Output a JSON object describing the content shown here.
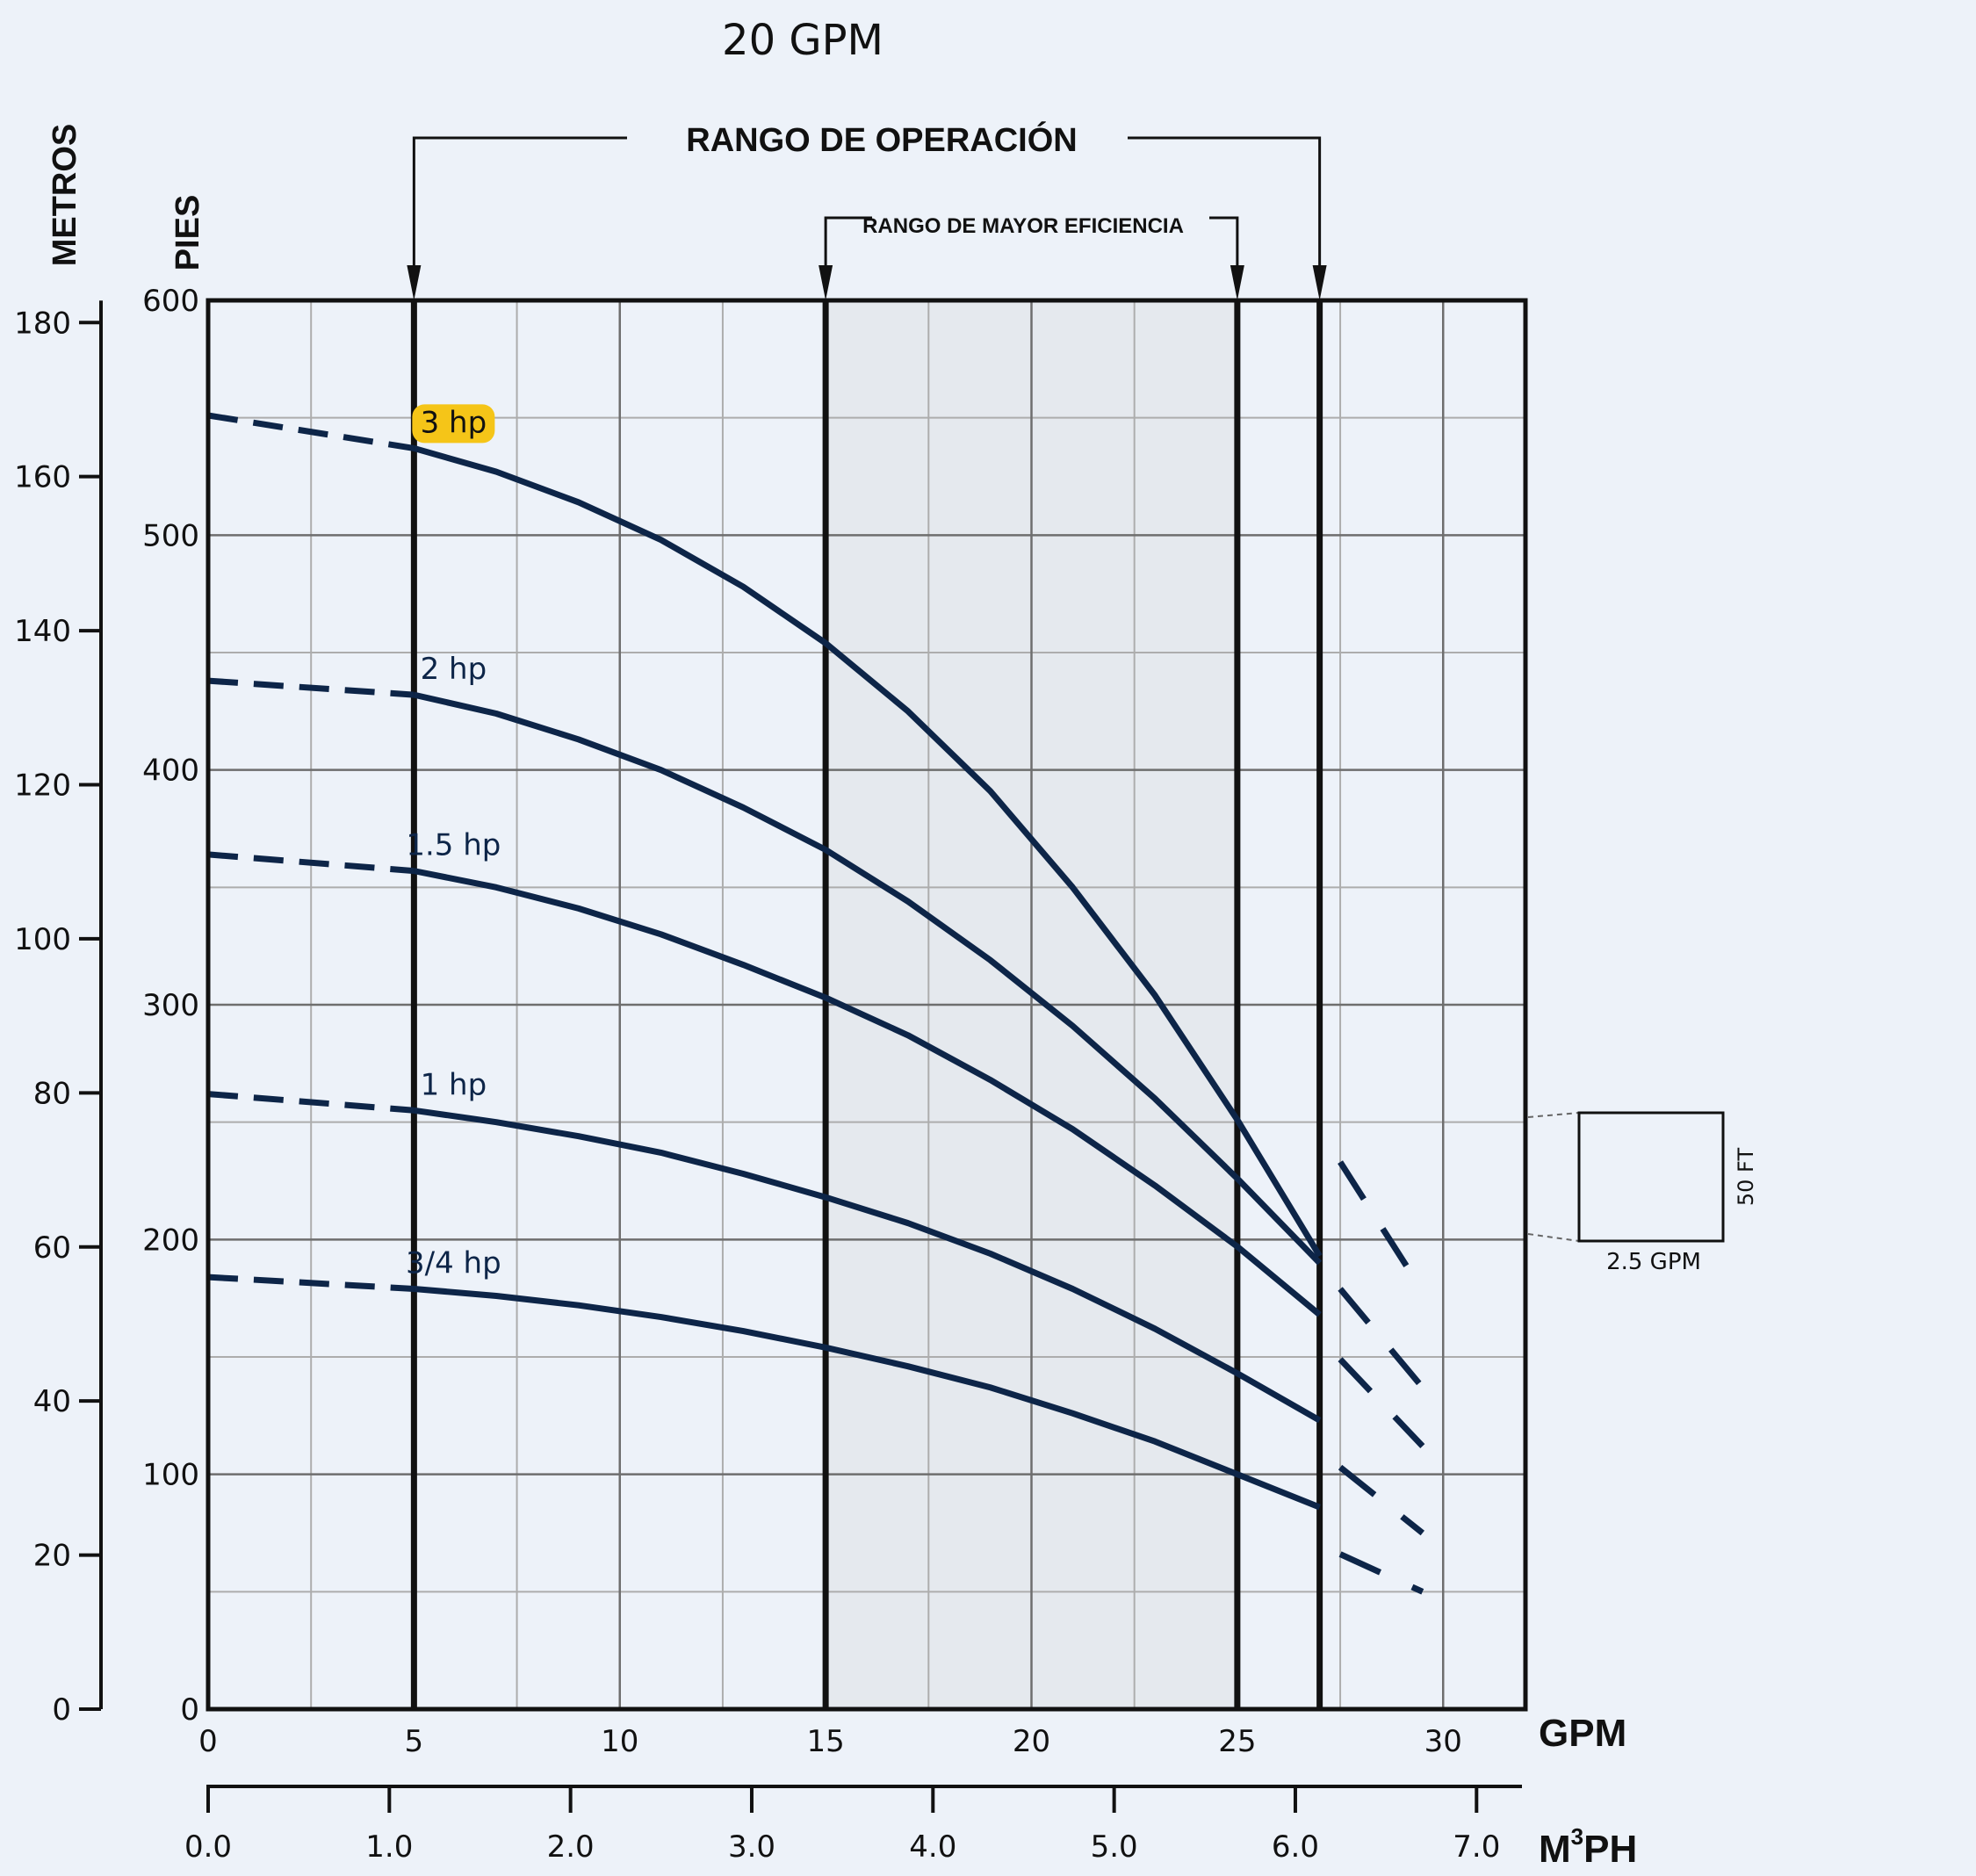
{
  "chart_data": {
    "type": "line",
    "title": "20 GPM",
    "xlabel": "GPM",
    "x2label": "M³PH",
    "x2label_base": "M",
    "x2label_sup": "3",
    "x2label_tail": "PH",
    "ylabel": "PIES",
    "y2label": "METROS",
    "xlim": [
      0,
      32
    ],
    "ylim": [
      0,
      600
    ],
    "x2lim": [
      0,
      7.27
    ],
    "y2lim": [
      0,
      182.88
    ],
    "x_ticks": [
      0,
      5,
      10,
      15,
      20,
      25,
      30
    ],
    "x_tick_labels": [
      "0",
      "5",
      "10",
      "15",
      "20",
      "25",
      "30"
    ],
    "y_ticks": [
      0,
      100,
      200,
      300,
      400,
      500,
      600
    ],
    "y_tick_labels": [
      "0",
      "100",
      "200",
      "300",
      "400",
      "500",
      "600"
    ],
    "x2_ticks": [
      0,
      1,
      2,
      3,
      4,
      5,
      6,
      7
    ],
    "x2_tick_labels": [
      "0.0",
      "1.0",
      "2.0",
      "3.0",
      "4.0",
      "5.0",
      "6.0",
      "7.0"
    ],
    "y2_ticks": [
      0,
      20,
      40,
      60,
      80,
      100,
      120,
      140,
      160,
      180
    ],
    "y2_tick_labels": [
      "0",
      "20",
      "40",
      "60",
      "80",
      "100",
      "120",
      "140",
      "160",
      "180"
    ],
    "grid": true,
    "operating_range": {
      "label": "RANGO DE OPERACIÓN",
      "x": [
        5,
        27
      ]
    },
    "efficiency_range": {
      "label": "RANGO DE MAYOR EFICIENCIA",
      "x": [
        15,
        25
      ]
    },
    "scale_box": {
      "height_label": "50 FT",
      "width_label": "2.5 GPM"
    },
    "highlight_color": "#f5c518",
    "curve_color": "#0d2548",
    "series": [
      {
        "name": "3 hp",
        "highlighted": true,
        "dashed_start": [
          [
            0,
            551
          ],
          [
            5,
            537
          ]
        ],
        "x": [
          5,
          7,
          9,
          11,
          13,
          15,
          17,
          19,
          21,
          23,
          25,
          27
        ],
        "y": [
          537,
          527,
          514,
          498,
          478,
          454,
          425,
          391,
          350,
          304,
          251,
          193
        ],
        "dashed_end": [
          [
            27.5,
            233
          ],
          [
            29.5,
            178
          ]
        ]
      },
      {
        "name": "2 hp",
        "dashed_start": [
          [
            0,
            438
          ],
          [
            5,
            432
          ]
        ],
        "x": [
          5,
          7,
          9,
          11,
          13,
          15,
          17,
          19,
          21,
          23,
          25,
          27
        ],
        "y": [
          432,
          424,
          413,
          400,
          384,
          366,
          344,
          319,
          291,
          260,
          226,
          190
        ],
        "dashed_end": [
          [
            27.5,
            179
          ],
          [
            29.5,
            137
          ]
        ]
      },
      {
        "name": "1.5 hp",
        "dashed_start": [
          [
            0,
            364
          ],
          [
            5,
            357
          ]
        ],
        "x": [
          5,
          7,
          9,
          11,
          13,
          15,
          17,
          19,
          21,
          23,
          25,
          27
        ],
        "y": [
          357,
          350,
          341,
          330,
          317,
          303,
          287,
          268,
          247,
          223,
          197,
          168
        ],
        "dashed_end": [
          [
            27.5,
            149
          ],
          [
            29.5,
            112
          ]
        ]
      },
      {
        "name": "1 hp",
        "dashed_start": [
          [
            0,
            262
          ],
          [
            5,
            255
          ]
        ],
        "x": [
          5,
          7,
          9,
          11,
          13,
          15,
          17,
          19,
          21,
          23,
          25,
          27
        ],
        "y": [
          255,
          250,
          244,
          237,
          228,
          218,
          207,
          194,
          179,
          162,
          143,
          123
        ],
        "dashed_end": [
          [
            27.5,
            103
          ],
          [
            29.5,
            75
          ]
        ]
      },
      {
        "name": "3/4 hp",
        "dashed_start": [
          [
            0,
            184
          ],
          [
            5,
            179
          ]
        ],
        "x": [
          5,
          7,
          9,
          11,
          13,
          15,
          17,
          19,
          21,
          23,
          25,
          27
        ],
        "y": [
          179,
          176,
          172,
          167,
          161,
          154,
          146,
          137,
          126,
          114,
          100,
          86
        ],
        "dashed_end": [
          [
            27.5,
            66
          ],
          [
            29.5,
            50
          ]
        ]
      }
    ]
  }
}
